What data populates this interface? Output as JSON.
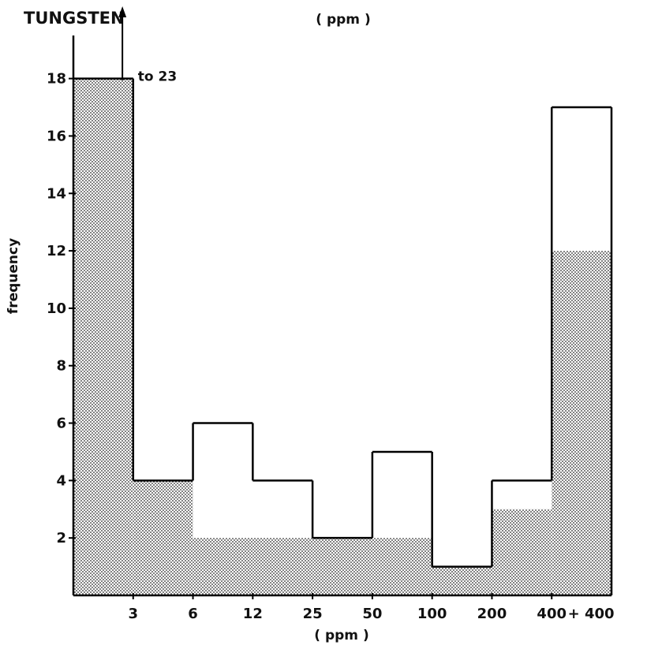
{
  "chart_data": {
    "type": "bar",
    "title": "TUNGSTEN",
    "top_unit_label": "( ppm )",
    "xlabel": "( ppm )",
    "ylabel": "frequency",
    "categories": [
      "≤3",
      "3–6",
      "6–12",
      "12–25",
      "25–50",
      "50–100",
      "100–200",
      "200–400",
      "+400"
    ],
    "x_tick_labels": [
      "3",
      "6",
      "12",
      "25",
      "50",
      "100",
      "200",
      "400",
      "+ 400"
    ],
    "y_ticks": [
      2,
      4,
      6,
      8,
      10,
      12,
      14,
      16,
      18
    ],
    "ylim": [
      0,
      19.5
    ],
    "grid": false,
    "series": [
      {
        "fill": "stippled",
        "values": [
          18,
          4,
          2,
          2,
          2,
          2,
          1,
          3,
          12
        ]
      },
      {
        "fill": "open",
        "values": [
          18,
          4,
          6,
          4,
          2,
          5,
          1,
          4,
          17
        ]
      }
    ],
    "annotations": [
      {
        "text": "to 23",
        "category_index": 0,
        "y": 18
      }
    ]
  },
  "colors": {
    "stipple_dot": "#2a2a2a",
    "line": "#000000",
    "background": "#ffffff"
  }
}
